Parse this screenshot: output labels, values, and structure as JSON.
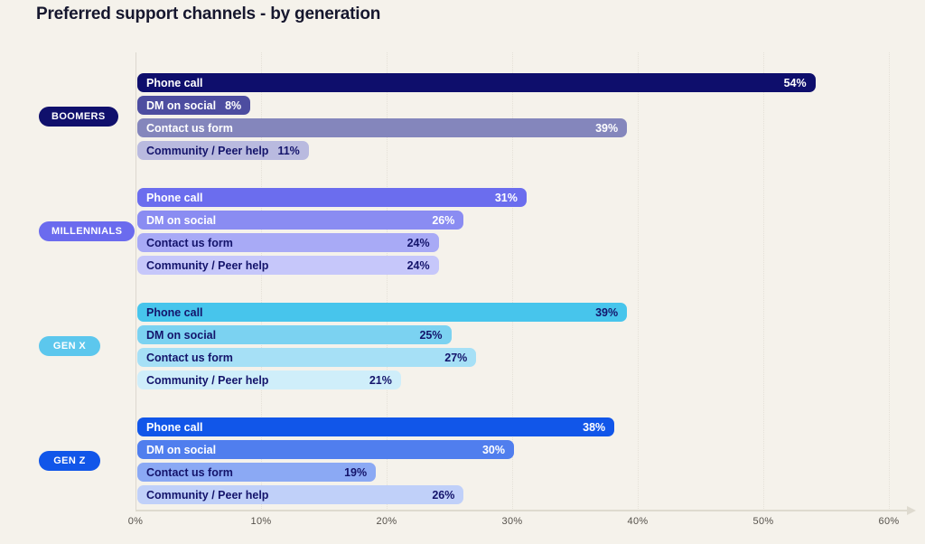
{
  "title": "Preferred support channels - by generation",
  "colors": {
    "background": "#F5F2EB",
    "title_text": "#16172E",
    "axis_line": "#DEDACF",
    "gridline": "#E5E1D8",
    "tick_label": "#55514B",
    "navy_text": "#14146B",
    "white_text": "#FFFFFF"
  },
  "chart_data": {
    "type": "bar",
    "orientation": "horizontal",
    "title": "Preferred support channels - by generation",
    "unit": "%",
    "xlim": [
      0,
      60
    ],
    "xticks": [
      "0%",
      "10%",
      "20%",
      "30%",
      "40%",
      "50%",
      "60%"
    ],
    "grid": "vertical-dotted",
    "legend_position": "none",
    "categories": [
      "Phone call",
      "DM on social",
      "Contact us form",
      "Community / Peer help"
    ],
    "groups": [
      {
        "label": "BOOMERS",
        "pill_color": "#10106C",
        "pill_text_color": "#FFFFFF",
        "bars": [
          {
            "category": "Phone call",
            "value": 54,
            "display": "54%",
            "color": "#0E0E6C",
            "text_color": "#FFFFFF"
          },
          {
            "category": "DM on social",
            "value": 8,
            "display": "8%",
            "color": "#4D4DA0",
            "text_color": "#FFFFFF"
          },
          {
            "category": "Contact us form",
            "value": 39,
            "display": "39%",
            "color": "#8486BC",
            "text_color": "#FFFFFF"
          },
          {
            "category": "Community / Peer help",
            "value": 11,
            "display": "11%",
            "color": "#B9BADF",
            "text_color": "#14146B"
          }
        ]
      },
      {
        "label": "MILLENNIALS",
        "pill_color": "#6B6BEE",
        "pill_text_color": "#FFFFFF",
        "bars": [
          {
            "category": "Phone call",
            "value": 31,
            "display": "31%",
            "color": "#6B6DEE",
            "text_color": "#FFFFFF"
          },
          {
            "category": "DM on social",
            "value": 26,
            "display": "26%",
            "color": "#8A8CF2",
            "text_color": "#FFFFFF"
          },
          {
            "category": "Contact us form",
            "value": 24,
            "display": "24%",
            "color": "#A8AAF6",
            "text_color": "#14146B"
          },
          {
            "category": "Community / Peer help",
            "value": 24,
            "display": "24%",
            "color": "#C6C7FA",
            "text_color": "#14146B"
          }
        ]
      },
      {
        "label": "GEN X",
        "pill_color": "#5CC7ED",
        "pill_text_color": "#FFFFFF",
        "bars": [
          {
            "category": "Phone call",
            "value": 39,
            "display": "39%",
            "color": "#47C5EC",
            "text_color": "#14146B"
          },
          {
            "category": "DM on social",
            "value": 25,
            "display": "25%",
            "color": "#7BD2F1",
            "text_color": "#14146B"
          },
          {
            "category": "Contact us form",
            "value": 27,
            "display": "27%",
            "color": "#A6E0F6",
            "text_color": "#14146B"
          },
          {
            "category": "Community / Peer help",
            "value": 21,
            "display": "21%",
            "color": "#CFEEFA",
            "text_color": "#14146B"
          }
        ]
      },
      {
        "label": "GEN Z",
        "pill_color": "#1156E9",
        "pill_text_color": "#FFFFFF",
        "bars": [
          {
            "category": "Phone call",
            "value": 38,
            "display": "38%",
            "color": "#1156E9",
            "text_color": "#FFFFFF"
          },
          {
            "category": "DM on social",
            "value": 30,
            "display": "30%",
            "color": "#507EEE",
            "text_color": "#FFFFFF"
          },
          {
            "category": "Contact us form",
            "value": 19,
            "display": "19%",
            "color": "#8BA9F4",
            "text_color": "#14146B"
          },
          {
            "category": "Community / Peer help",
            "value": 26,
            "display": "26%",
            "color": "#C0D0F9",
            "text_color": "#14146B"
          }
        ]
      }
    ]
  }
}
